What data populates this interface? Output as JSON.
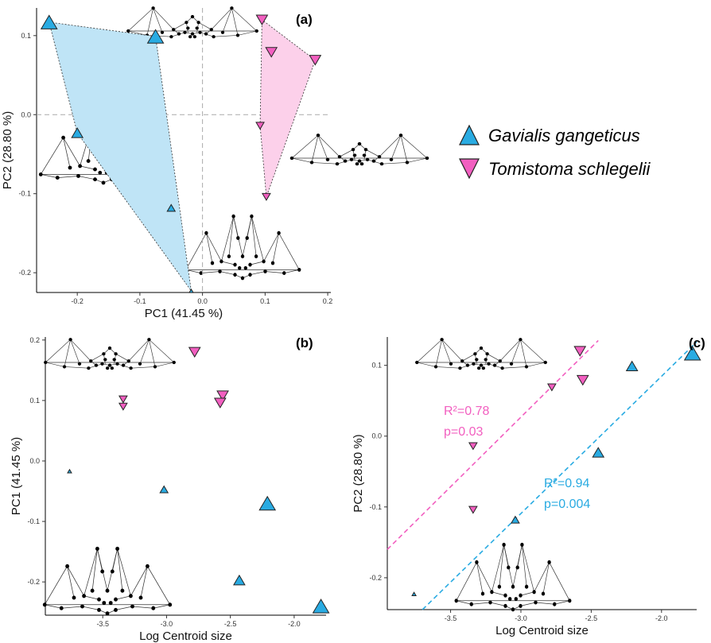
{
  "colors": {
    "gavialis": "#29abe2",
    "tomistoma": "#f25fc0",
    "hull_gavialis": "#bfe4f6",
    "hull_tomistoma": "#fcd0ea"
  },
  "legend": {
    "items": [
      {
        "label": "Gavialis gangeticus",
        "shape": "triangle-up",
        "color": "#29abe2"
      },
      {
        "label": "Tomistoma schlegelii",
        "shape": "triangle-down",
        "color": "#f25fc0"
      }
    ]
  },
  "chart_data": [
    {
      "panel": "(a)",
      "type": "scatter",
      "xlabel": "PC1 (41.45 %)",
      "ylabel": "PC2 (28.80 %)",
      "xlim": [
        -0.265,
        0.205
      ],
      "ylim": [
        -0.225,
        0.135
      ],
      "xticks": [
        "-0.2",
        "-0.1",
        "0.0",
        "0.1",
        "0.2"
      ],
      "yticks": [
        "-0.2",
        "-0.1",
        "0.0",
        "0.1"
      ],
      "reference_lines": {
        "x": 0,
        "y": 0
      },
      "series": [
        {
          "name": "Gavialis gangeticus",
          "points": [
            {
              "x": -0.245,
              "y": 0.117,
              "size": "large"
            },
            {
              "x": -0.075,
              "y": 0.099,
              "size": "large"
            },
            {
              "x": -0.2,
              "y": -0.023,
              "size": "medium"
            },
            {
              "x": -0.05,
              "y": -0.118,
              "size": "small"
            },
            {
              "x": -0.018,
              "y": -0.223,
              "size": "tiny"
            }
          ]
        },
        {
          "name": "Tomistoma schlegelii",
          "points": [
            {
              "x": 0.095,
              "y": 0.12,
              "size": "medium"
            },
            {
              "x": 0.11,
              "y": 0.079,
              "size": "medium"
            },
            {
              "x": 0.18,
              "y": 0.069,
              "size": "medium"
            },
            {
              "x": 0.092,
              "y": -0.014,
              "size": "small"
            },
            {
              "x": 0.102,
              "y": -0.104,
              "size": "small"
            }
          ]
        }
      ]
    },
    {
      "panel": "(b)",
      "type": "scatter",
      "xlabel": "Log Centroid size",
      "ylabel": "PC1 (41.45 %)",
      "xlim": [
        -3.95,
        -1.75
      ],
      "ylim": [
        -0.255,
        0.205
      ],
      "xticks": [
        "-3.5",
        "-3.0",
        "-2.5",
        "-2.0"
      ],
      "yticks": [
        "-0.2",
        "-0.1",
        "0.0",
        "0.1",
        "0.2"
      ],
      "series": [
        {
          "name": "Gavialis gangeticus",
          "points": [
            {
              "x": -3.76,
              "y": -0.017,
              "size": "tiny"
            },
            {
              "x": -3.02,
              "y": -0.047,
              "size": "small"
            },
            {
              "x": -2.21,
              "y": -0.07,
              "size": "large"
            },
            {
              "x": -2.43,
              "y": -0.197,
              "size": "medium"
            },
            {
              "x": -1.79,
              "y": -0.24,
              "size": "large"
            }
          ]
        },
        {
          "name": "Tomistoma schlegelii",
          "points": [
            {
              "x": -2.78,
              "y": 0.18,
              "size": "medium"
            },
            {
              "x": -2.56,
              "y": 0.108,
              "size": "medium"
            },
            {
              "x": -2.58,
              "y": 0.096,
              "size": "medium"
            },
            {
              "x": -3.34,
              "y": 0.102,
              "size": "small"
            },
            {
              "x": -3.34,
              "y": 0.09,
              "size": "small"
            }
          ]
        }
      ]
    },
    {
      "panel": "(c)",
      "type": "scatter",
      "xlabel": "Log Centroid size",
      "ylabel": "PC2 (28.80 %)",
      "xlim": [
        -3.95,
        -1.75
      ],
      "ylim": [
        -0.245,
        0.14
      ],
      "xticks": [
        "-3.5",
        "-3.0",
        "-2.5",
        "-2.0"
      ],
      "yticks": [
        "-0.2",
        "-0.1",
        "0.0",
        "0.1"
      ],
      "series": [
        {
          "name": "Gavialis gangeticus",
          "points": [
            {
              "x": -3.76,
              "y": -0.223,
              "size": "tiny"
            },
            {
              "x": -3.04,
              "y": -0.118,
              "size": "small"
            },
            {
              "x": -2.45,
              "y": -0.023,
              "size": "medium"
            },
            {
              "x": -2.21,
              "y": 0.099,
              "size": "medium"
            },
            {
              "x": -1.78,
              "y": 0.117,
              "size": "large"
            }
          ]
        },
        {
          "name": "Tomistoma schlegelii",
          "points": [
            {
              "x": -2.58,
              "y": 0.12,
              "size": "medium"
            },
            {
              "x": -2.56,
              "y": 0.079,
              "size": "medium"
            },
            {
              "x": -2.78,
              "y": 0.069,
              "size": "small"
            },
            {
              "x": -3.34,
              "y": -0.014,
              "size": "small"
            },
            {
              "x": -3.34,
              "y": -0.104,
              "size": "small"
            }
          ]
        }
      ],
      "regressions": [
        {
          "series": "Tomistoma schlegelii",
          "from": [
            -3.95,
            -0.16
          ],
          "to": [
            -2.45,
            0.135
          ],
          "r2_label": "R²=0.78",
          "p_label": "p=0.03"
        },
        {
          "series": "Gavialis gangeticus",
          "from": [
            -3.7,
            -0.245
          ],
          "to": [
            -1.75,
            0.133
          ],
          "r2_label": "R²=0.94",
          "p_label": "p=0.004"
        }
      ]
    }
  ]
}
